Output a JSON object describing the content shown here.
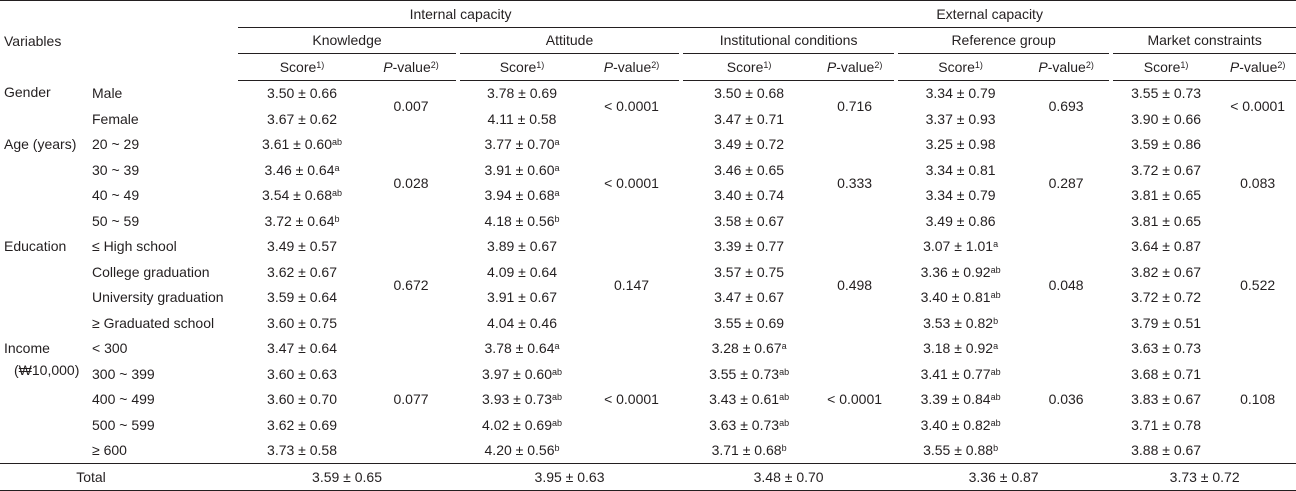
{
  "header": {
    "variables": "Variables",
    "internal": "Internal capacity",
    "external": "External capacity",
    "sub": [
      "Knowledge",
      "Attitude",
      "Institutional conditions",
      "Reference group",
      "Market constraints"
    ],
    "score": "Score",
    "score_sup": "1)",
    "p_italic": "P",
    "p_rest": "-value",
    "p_sup": "2)"
  },
  "groups": [
    {
      "name": "Gender",
      "name2": "",
      "p": [
        "0.007",
        "< 0.0001",
        "0.716",
        "0.693",
        "< 0.0001"
      ],
      "rows": [
        {
          "label": "Male",
          "cells": [
            [
              "3.50 ± 0.66",
              ""
            ],
            [
              "3.78 ± 0.69",
              ""
            ],
            [
              "3.50 ± 0.68",
              ""
            ],
            [
              "3.34 ± 0.79",
              ""
            ],
            [
              "3.55 ± 0.73",
              ""
            ]
          ]
        },
        {
          "label": "Female",
          "cells": [
            [
              "3.67 ± 0.62",
              ""
            ],
            [
              "4.11 ± 0.58",
              ""
            ],
            [
              "3.47 ± 0.71",
              ""
            ],
            [
              "3.37 ± 0.93",
              ""
            ],
            [
              "3.90 ± 0.66",
              ""
            ]
          ]
        }
      ]
    },
    {
      "name": "Age (years)",
      "name2": "",
      "p": [
        "0.028",
        "< 0.0001",
        "0.333",
        "0.287",
        "0.083"
      ],
      "rows": [
        {
          "label": "20 ~ 29",
          "cells": [
            [
              "3.61 ± 0.60",
              "ab"
            ],
            [
              "3.77 ± 0.70",
              "a"
            ],
            [
              "3.49 ± 0.72",
              ""
            ],
            [
              "3.25 ± 0.98",
              ""
            ],
            [
              "3.59 ± 0.86",
              ""
            ]
          ]
        },
        {
          "label": "30 ~ 39",
          "cells": [
            [
              "3.46 ± 0.64",
              "a"
            ],
            [
              "3.91 ± 0.60",
              "a"
            ],
            [
              "3.46 ± 0.65",
              ""
            ],
            [
              "3.34 ± 0.81",
              ""
            ],
            [
              "3.72 ± 0.67",
              ""
            ]
          ]
        },
        {
          "label": "40 ~ 49",
          "cells": [
            [
              "3.54 ± 0.68",
              "ab"
            ],
            [
              "3.94 ± 0.68",
              "a"
            ],
            [
              "3.40 ± 0.74",
              ""
            ],
            [
              "3.34 ± 0.79",
              ""
            ],
            [
              "3.81 ± 0.65",
              ""
            ]
          ]
        },
        {
          "label": "50 ~ 59",
          "cells": [
            [
              "3.72 ± 0.64",
              "b"
            ],
            [
              "4.18 ± 0.56",
              "b"
            ],
            [
              "3.58 ± 0.67",
              ""
            ],
            [
              "3.49 ± 0.86",
              ""
            ],
            [
              "3.81 ± 0.65",
              ""
            ]
          ]
        }
      ]
    },
    {
      "name": "Education",
      "name2": "",
      "p": [
        "0.672",
        "0.147",
        "0.498",
        "0.048",
        "0.522"
      ],
      "rows": [
        {
          "label": "≤ High school",
          "cells": [
            [
              "3.49 ± 0.57",
              ""
            ],
            [
              "3.89 ± 0.67",
              ""
            ],
            [
              "3.39 ± 0.77",
              ""
            ],
            [
              "3.07 ± 1.01",
              "a"
            ],
            [
              "3.64 ± 0.87",
              ""
            ]
          ]
        },
        {
          "label": "College graduation",
          "cells": [
            [
              "3.62 ± 0.67",
              ""
            ],
            [
              "4.09 ± 0.64",
              ""
            ],
            [
              "3.57 ± 0.75",
              ""
            ],
            [
              "3.36 ± 0.92",
              "ab"
            ],
            [
              "3.82 ± 0.67",
              ""
            ]
          ]
        },
        {
          "label": "University graduation",
          "cells": [
            [
              "3.59 ± 0.64",
              ""
            ],
            [
              "3.91 ± 0.67",
              ""
            ],
            [
              "3.47 ± 0.67",
              ""
            ],
            [
              "3.40 ± 0.81",
              "ab"
            ],
            [
              "3.72 ± 0.72",
              ""
            ]
          ]
        },
        {
          "label": "≥ Graduated school",
          "cells": [
            [
              "3.60 ± 0.75",
              ""
            ],
            [
              "4.04 ± 0.46",
              ""
            ],
            [
              "3.55 ± 0.69",
              ""
            ],
            [
              "3.53 ± 0.82",
              "b"
            ],
            [
              "3.79 ± 0.51",
              ""
            ]
          ]
        }
      ]
    },
    {
      "name": "Income",
      "name2": "(₩10,000)",
      "p": [
        "0.077",
        "< 0.0001",
        "< 0.0001",
        "0.036",
        "0.108"
      ],
      "rows": [
        {
          "label": "< 300",
          "cells": [
            [
              "3.47 ± 0.64",
              ""
            ],
            [
              "3.78 ± 0.64",
              "a"
            ],
            [
              "3.28 ± 0.67",
              "a"
            ],
            [
              "3.18 ± 0.92",
              "a"
            ],
            [
              "3.63 ± 0.73",
              ""
            ]
          ]
        },
        {
          "label": "300 ~ 399",
          "cells": [
            [
              "3.60 ± 0.63",
              ""
            ],
            [
              "3.97 ± 0.60",
              "ab"
            ],
            [
              "3.55 ± 0.73",
              "ab"
            ],
            [
              "3.41 ± 0.77",
              "ab"
            ],
            [
              "3.68 ± 0.71",
              ""
            ]
          ]
        },
        {
          "label": "400 ~ 499",
          "cells": [
            [
              "3.60 ± 0.70",
              ""
            ],
            [
              "3.93 ± 0.73",
              "ab"
            ],
            [
              "3.43 ± 0.61",
              "ab"
            ],
            [
              "3.39 ± 0.84",
              "ab"
            ],
            [
              "3.83 ± 0.67",
              ""
            ]
          ]
        },
        {
          "label": "500 ~ 599",
          "cells": [
            [
              "3.62 ± 0.69",
              ""
            ],
            [
              "4.02 ± 0.69",
              "ab"
            ],
            [
              "3.63 ± 0.73",
              "ab"
            ],
            [
              "3.40 ± 0.82",
              "ab"
            ],
            [
              "3.71 ± 0.78",
              ""
            ]
          ]
        },
        {
          "label": "≥ 600",
          "cells": [
            [
              "3.73 ± 0.58",
              ""
            ],
            [
              "4.20 ± 0.56",
              "b"
            ],
            [
              "3.71 ± 0.68",
              "b"
            ],
            [
              "3.55 ± 0.88",
              "b"
            ],
            [
              "3.88 ± 0.67",
              ""
            ]
          ]
        }
      ]
    }
  ],
  "total": {
    "label": "Total",
    "values": [
      "3.59 ± 0.65",
      "3.95 ± 0.63",
      "3.48 ± 0.70",
      "3.36 ± 0.87",
      "3.73 ± 0.72"
    ]
  }
}
